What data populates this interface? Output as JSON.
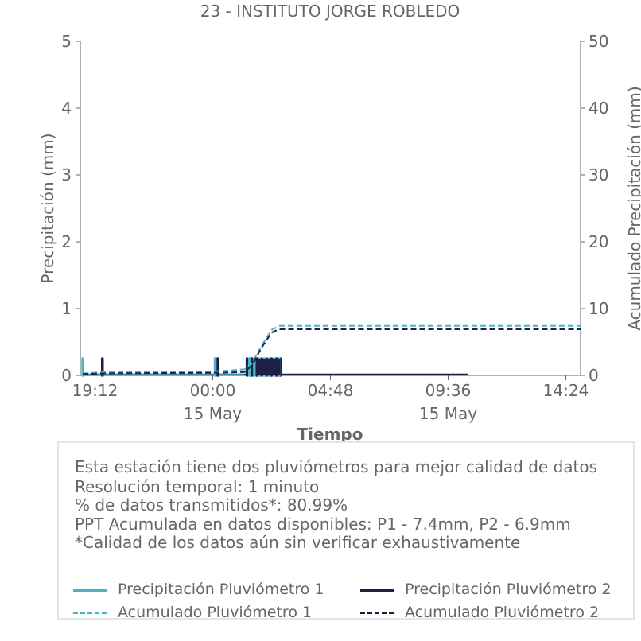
{
  "chart_data": {
    "type": "bar+line",
    "title": "23 - INSTITUTO JORGE ROBLEDO",
    "xlabel": "Tiempo",
    "ylabel": "Precipitación (mm)",
    "y2label": "Acumulado Precipitación (mm)",
    "ylim": [
      0,
      5
    ],
    "y2lim": [
      0,
      50
    ],
    "yticks": [
      "0",
      "1",
      "2",
      "3",
      "4",
      "5"
    ],
    "y2ticks": [
      "0",
      "10",
      "20",
      "30",
      "40",
      "50"
    ],
    "x_range_hours": [
      -5.4,
      15.0
    ],
    "xticks": [
      {
        "t": -4.8,
        "label": "19:12",
        "sub": ""
      },
      {
        "t": 0.0,
        "label": "00:00",
        "sub": "15 May"
      },
      {
        "t": 4.8,
        "label": "04:48",
        "sub": ""
      },
      {
        "t": 9.6,
        "label": "09:36",
        "sub": "15 May"
      },
      {
        "t": 14.4,
        "label": "14:24",
        "sub": ""
      }
    ],
    "colors": {
      "p1": "#4ab3c4",
      "p2": "#1e2048"
    },
    "series": [
      {
        "name": "Precipitación Pluviómetro 1",
        "kind": "bars",
        "color": "#4ab3c4",
        "x": [
          -5.3,
          0.1,
          1.5,
          1.7,
          1.9,
          2.1,
          2.3,
          2.5,
          2.7
        ],
        "values": [
          0.25,
          0.25,
          0.25,
          0.25,
          0.25,
          0.25,
          0.25,
          0.25,
          0.25
        ]
      },
      {
        "name": "Precipitación Pluviómetro 2",
        "kind": "bars",
        "color": "#1e2048",
        "x": [
          -4.5,
          0.2,
          1.4,
          1.55,
          1.6,
          1.8,
          2.0,
          2.2,
          2.4,
          2.6,
          2.75
        ],
        "values": [
          0.25,
          0.25,
          0.25,
          0.25,
          0.25,
          0.25,
          0.25,
          0.25,
          0.25,
          0.25,
          0.25
        ]
      },
      {
        "name": "Acumulado Pluviómetro 1",
        "kind": "cumulative",
        "color": "#4ab3c4",
        "x": [
          -5.3,
          -4.5,
          0.1,
          1.3,
          1.6,
          2.0,
          2.4,
          2.7,
          15.0
        ],
        "values": [
          0.3,
          0.5,
          0.6,
          0.9,
          1.8,
          4.5,
          6.8,
          7.4,
          7.4
        ]
      },
      {
        "name": "Acumulado Pluviómetro 2",
        "kind": "cumulative",
        "color": "#1e2048",
        "x": [
          -5.3,
          -4.5,
          0.2,
          1.3,
          1.6,
          2.0,
          2.4,
          2.7,
          15.0
        ],
        "values": [
          0.2,
          0.3,
          0.4,
          0.5,
          1.5,
          4.2,
          6.4,
          6.9,
          6.9
        ]
      }
    ]
  },
  "info": {
    "lines": [
      "Esta estación tiene dos pluviómetros para mejor calidad de datos",
      "Resolución temporal: 1 minuto",
      "% de datos transmitidos*: 80.99%",
      "PPT Acumulada en datos disponibles: P1 - 7.4mm, P2 - 6.9mm",
      "*Calidad de los datos aún sin verificar exhaustivamente"
    ],
    "legend": [
      {
        "label": "Precipitación Pluviómetro 1",
        "color": "#4ab3c4",
        "style": "solid"
      },
      {
        "label": "Precipitación Pluviómetro 2",
        "color": "#1e2048",
        "style": "solid"
      },
      {
        "label": "Acumulado Pluviómetro 1",
        "color": "#4ab3c4",
        "style": "dashed"
      },
      {
        "label": "Acumulado Pluviómetro 2",
        "color": "#1e2048",
        "style": "dashed"
      }
    ]
  }
}
